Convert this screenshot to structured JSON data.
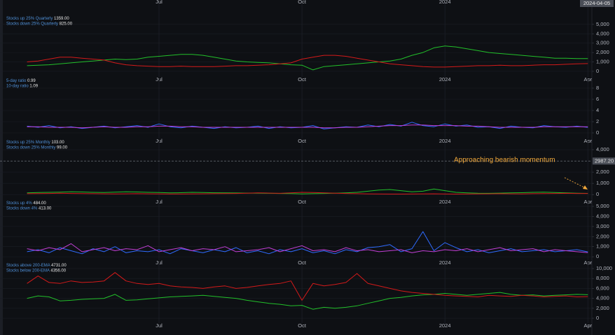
{
  "cursor_date": "2024-04-05",
  "chart_data": [
    {
      "type": "line",
      "categories": [
        null,
        null,
        null,
        null,
        null,
        null,
        null,
        null,
        null,
        null,
        null,
        null,
        "Jul",
        null,
        null,
        null,
        null,
        null,
        null,
        null,
        null,
        null,
        null,
        null,
        null,
        "Oct",
        null,
        null,
        null,
        null,
        null,
        null,
        null,
        null,
        null,
        null,
        null,
        null,
        "2024",
        null,
        null,
        null,
        null,
        null,
        null,
        null,
        null,
        null,
        null,
        null,
        null,
        "Apr"
      ],
      "ylim": [
        -450,
        7000
      ],
      "yticks": [
        0,
        {
          "value": 1000,
          "label": "1,000"
        },
        {
          "value": 2000,
          "label": "2,000"
        },
        {
          "value": 3000,
          "label": "3,000"
        },
        {
          "value": 4000,
          "label": "4,000"
        },
        {
          "value": 5000,
          "label": "5,000"
        }
      ],
      "series": [
        {
          "name": "Stocks up 25% Quarterly",
          "legend_value": "1359.00",
          "color": "#22c02a",
          "values": [
            600,
            650,
            700,
            800,
            900,
            1000,
            1100,
            1200,
            1300,
            1250,
            1300,
            1500,
            1600,
            1700,
            1800,
            1800,
            1700,
            1500,
            1300,
            1100,
            1000,
            950,
            900,
            800,
            700,
            650,
            150,
            500,
            600,
            700,
            800,
            900,
            1000,
            1100,
            1300,
            1700,
            2000,
            2500,
            2700,
            2600,
            2400,
            2200,
            2000,
            1900,
            1800,
            1700,
            1600,
            1500,
            1400,
            1400,
            1350,
            1359
          ]
        },
        {
          "name": "Stocks down 25% Quarterly",
          "legend_value": "825.00",
          "color": "#d41a1a",
          "values": [
            1000,
            1100,
            1300,
            1500,
            1500,
            1400,
            1300,
            1200,
            900,
            700,
            600,
            550,
            500,
            500,
            550,
            500,
            500,
            500,
            550,
            600,
            600,
            650,
            700,
            800,
            900,
            1300,
            1500,
            1700,
            1700,
            1600,
            1400,
            1200,
            1000,
            800,
            700,
            600,
            500,
            450,
            450,
            500,
            550,
            600,
            600,
            650,
            600,
            600,
            650,
            700,
            700,
            750,
            800,
            825
          ]
        }
      ]
    },
    {
      "type": "line",
      "categories": [
        null,
        null,
        null,
        null,
        null,
        null,
        null,
        null,
        null,
        null,
        null,
        null,
        "Jul",
        null,
        null,
        null,
        null,
        null,
        null,
        null,
        null,
        null,
        null,
        null,
        null,
        "Oct",
        null,
        null,
        null,
        null,
        null,
        null,
        null,
        null,
        null,
        null,
        null,
        null,
        "2024",
        null,
        null,
        null,
        null,
        null,
        null,
        null,
        null,
        null,
        null,
        null,
        null,
        "Apr"
      ],
      "ylim": [
        -0.75,
        9
      ],
      "yticks": [
        0,
        2,
        4,
        6,
        8
      ],
      "series": [
        {
          "name": "5-day ratio",
          "legend_value": "0.99",
          "color": "#2f6bff",
          "values": [
            1.2,
            1.0,
            1.3,
            0.9,
            1.1,
            0.8,
            1.0,
            1.2,
            0.9,
            1.1,
            1.3,
            1.0,
            1.6,
            1.1,
            0.9,
            1.2,
            1.0,
            0.8,
            1.1,
            0.9,
            1.0,
            1.2,
            0.8,
            1.1,
            0.9,
            1.0,
            1.3,
            0.7,
            0.9,
            1.1,
            1.0,
            1.4,
            1.1,
            1.5,
            1.2,
            1.9,
            1.3,
            1.1,
            1.6,
            1.2,
            1.4,
            1.0,
            1.1,
            0.8,
            1.2,
            1.0,
            0.9,
            1.3,
            1.1,
            1.0,
            1.2,
            0.99
          ]
        },
        {
          "name": "10-day ratio",
          "legend_value": "1.09",
          "color": "#c23fd6",
          "values": [
            1.1,
            1.1,
            1.0,
            1.0,
            1.0,
            0.9,
            1.0,
            1.1,
            1.0,
            1.0,
            1.1,
            1.1,
            1.2,
            1.2,
            1.1,
            1.1,
            1.0,
            1.0,
            1.0,
            1.0,
            1.0,
            1.0,
            1.0,
            1.0,
            1.0,
            1.0,
            1.0,
            0.9,
            0.9,
            1.0,
            1.0,
            1.1,
            1.2,
            1.3,
            1.3,
            1.4,
            1.4,
            1.3,
            1.3,
            1.3,
            1.2,
            1.2,
            1.1,
            1.0,
            1.0,
            1.0,
            1.0,
            1.1,
            1.1,
            1.1,
            1.1,
            1.09
          ]
        }
      ]
    },
    {
      "type": "line",
      "categories": [
        null,
        null,
        null,
        null,
        null,
        null,
        null,
        null,
        null,
        null,
        null,
        null,
        "Jul",
        null,
        null,
        null,
        null,
        null,
        null,
        null,
        null,
        null,
        null,
        null,
        null,
        "Oct",
        null,
        null,
        null,
        null,
        null,
        null,
        null,
        null,
        null,
        null,
        null,
        null,
        "2024",
        null,
        null,
        null,
        null,
        null,
        null,
        null,
        null,
        null,
        null,
        null,
        null,
        "Apr"
      ],
      "ylim": [
        -300,
        4500
      ],
      "yticks": [
        0,
        {
          "value": 1000,
          "label": "1,000"
        },
        {
          "value": 2000,
          "label": "2,000"
        },
        {
          "value": 4000,
          "label": "4,000"
        }
      ],
      "hline": {
        "value": 2987.2,
        "label": "2987.20"
      },
      "annotation": "Approaching bearish momentum",
      "series": [
        {
          "name": "Stocks up 25% Monthly",
          "legend_value": "103.00",
          "color": "#22c02a",
          "values": [
            150,
            180,
            200,
            220,
            250,
            230,
            200,
            180,
            220,
            250,
            230,
            200,
            180,
            150,
            170,
            200,
            180,
            160,
            150,
            140,
            130,
            120,
            110,
            100,
            90,
            60,
            80,
            100,
            120,
            150,
            200,
            300,
            400,
            450,
            350,
            250,
            300,
            500,
            350,
            200,
            150,
            120,
            110,
            130,
            150,
            170,
            200,
            220,
            180,
            150,
            120,
            103
          ]
        },
        {
          "name": "Stocks down 25% Monthly",
          "legend_value": "99.00",
          "color": "#d41a1a",
          "values": [
            80,
            90,
            100,
            120,
            100,
            90,
            80,
            70,
            60,
            70,
            80,
            70,
            60,
            50,
            50,
            60,
            70,
            80,
            90,
            100,
            120,
            150,
            130,
            110,
            150,
            200,
            180,
            150,
            120,
            100,
            80,
            60,
            50,
            40,
            40,
            50,
            60,
            70,
            50,
            40,
            50,
            60,
            70,
            80,
            70,
            60,
            80,
            90,
            100,
            110,
            100,
            99
          ]
        }
      ]
    },
    {
      "type": "line",
      "categories": [
        null,
        null,
        null,
        null,
        null,
        null,
        null,
        null,
        null,
        null,
        null,
        null,
        "Jul",
        null,
        null,
        null,
        null,
        null,
        null,
        null,
        null,
        null,
        null,
        null,
        null,
        "Oct",
        null,
        null,
        null,
        null,
        null,
        null,
        null,
        null,
        null,
        null,
        null,
        null,
        "2024",
        null,
        null,
        null,
        null,
        null,
        null,
        null,
        null,
        null,
        null,
        null,
        null,
        "Apr"
      ],
      "ylim": [
        -200,
        5350
      ],
      "yticks": [
        0,
        {
          "value": 1000,
          "label": "1,000"
        },
        {
          "value": 2000,
          "label": "2,000"
        },
        {
          "value": 3000,
          "label": "3,000"
        },
        {
          "value": 4000,
          "label": "4,000"
        },
        {
          "value": 5000,
          "label": "5,000"
        }
      ],
      "series": [
        {
          "name": "Stocks up 4%",
          "legend_value": "484.00",
          "color": "#2f6bff",
          "values": [
            500,
            700,
            400,
            900,
            600,
            300,
            800,
            500,
            1000,
            400,
            600,
            500,
            700,
            300,
            800,
            600,
            400,
            700,
            500,
            900,
            400,
            600,
            300,
            700,
            500,
            800,
            400,
            600,
            300,
            700,
            500,
            900,
            1000,
            1200,
            500,
            800,
            2500,
            600,
            1400,
            900,
            500,
            700,
            400,
            600,
            800,
            500,
            600,
            700,
            500,
            600,
            700,
            484
          ]
        },
        {
          "name": "Stocks down 4%",
          "legend_value": "413.00",
          "color": "#c23fd6",
          "values": [
            800,
            600,
            900,
            700,
            1300,
            500,
            700,
            900,
            600,
            800,
            700,
            1100,
            500,
            700,
            900,
            600,
            800,
            700,
            1000,
            500,
            600,
            700,
            900,
            500,
            800,
            1100,
            600,
            700,
            500,
            900,
            600,
            700,
            500,
            600,
            700,
            400,
            600,
            500,
            700,
            600,
            800,
            500,
            700,
            900,
            600,
            700,
            800,
            500,
            700,
            600,
            500,
            413
          ]
        }
      ]
    },
    {
      "type": "line",
      "categories": [
        null,
        null,
        null,
        null,
        null,
        null,
        null,
        null,
        null,
        null,
        null,
        null,
        "Jul",
        null,
        null,
        null,
        null,
        null,
        null,
        null,
        null,
        null,
        null,
        null,
        null,
        "Oct",
        null,
        null,
        null,
        null,
        null,
        null,
        null,
        null,
        null,
        null,
        null,
        null,
        "2024",
        null,
        null,
        null,
        null,
        null,
        null,
        null,
        null,
        null,
        null,
        null,
        null,
        "Apr"
      ],
      "ylim": [
        -700,
        10700
      ],
      "yticks": [
        0,
        {
          "value": 2000,
          "label": "2,000"
        },
        {
          "value": 4000,
          "label": "4,000"
        },
        {
          "value": 6000,
          "label": "6,000"
        },
        {
          "value": 8000,
          "label": "8,000"
        },
        {
          "value": 10000,
          "label": "10,000"
        }
      ],
      "series": [
        {
          "name": "Stocks above 200-EMA",
          "legend_value": "4731.00",
          "color": "#22c02a",
          "values": [
            4000,
            4500,
            4300,
            3500,
            3600,
            3800,
            3900,
            4000,
            4800,
            3600,
            3700,
            3900,
            4100,
            4300,
            4400,
            4500,
            4600,
            4400,
            4200,
            4000,
            3600,
            3300,
            3000,
            2800,
            2500,
            2600,
            1800,
            2200,
            2000,
            2200,
            2500,
            3000,
            3500,
            4000,
            4200,
            4500,
            4700,
            4800,
            5000,
            4800,
            4600,
            4800,
            5000,
            5200,
            4800,
            4600,
            4700,
            4500,
            4600,
            4700,
            4800,
            4731
          ]
        },
        {
          "name": "Stocks below 200-EMA",
          "legend_value": "4356.00",
          "color": "#d41a1a",
          "values": [
            7000,
            8500,
            7200,
            7000,
            7500,
            7200,
            7300,
            7500,
            9200,
            7500,
            7000,
            6800,
            7000,
            6500,
            6300,
            6200,
            6000,
            6300,
            6500,
            6000,
            6200,
            6500,
            6800,
            7000,
            7500,
            3600,
            7000,
            6500,
            6800,
            7200,
            9000,
            7000,
            6500,
            6000,
            5500,
            5200,
            5000,
            4800,
            4600,
            4500,
            4400,
            4300,
            4600,
            4500,
            4400,
            4600,
            4500,
            4300,
            4400,
            4500,
            4300,
            4356
          ]
        }
      ]
    }
  ]
}
